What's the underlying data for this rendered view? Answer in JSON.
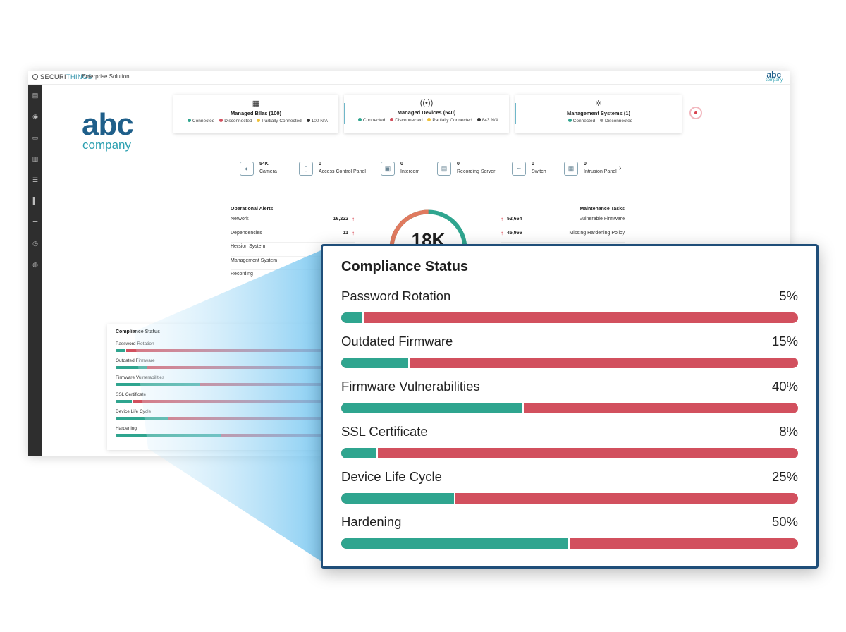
{
  "app": {
    "brand": "SECURITHINGS",
    "brand_prefix": "SECURI",
    "brand_suffix": "THINGS",
    "subtitle": "Enterprise Solution",
    "corner_logo_word": "abc",
    "corner_logo_sub": "company"
  },
  "logo": {
    "word": "abc",
    "sub": "company"
  },
  "sidebar": {
    "icons": [
      "dashboard-icon",
      "location-pin-icon",
      "monitor-icon",
      "building-icon",
      "list-icon",
      "bar-chart-icon",
      "sliders-icon",
      "clock-icon",
      "globe-icon"
    ]
  },
  "summary_cards": [
    {
      "icon": "building-icon",
      "title": "Managed Bllas (100)",
      "legend": [
        {
          "label": "Connected",
          "color": "#2fa58f"
        },
        {
          "label": "Disconnected",
          "color": "#d2505e"
        },
        {
          "label": "Partially Connected",
          "color": "#f0c23b"
        },
        {
          "label": "100 N/A",
          "color": "#333333"
        }
      ]
    },
    {
      "icon": "broadcast-icon",
      "title": "Managed Devices (540)",
      "legend": [
        {
          "label": "Connected",
          "color": "#2fa58f"
        },
        {
          "label": "Disconnected",
          "color": "#d2505e"
        },
        {
          "label": "Partially Connected",
          "color": "#f0c23b"
        },
        {
          "label": "843 N/A",
          "color": "#333333"
        }
      ]
    },
    {
      "icon": "asterisk-icon",
      "title": "Management Systems (1)",
      "legend": [
        {
          "label": "Connected",
          "color": "#2fa58f"
        },
        {
          "label": "Disconnected",
          "color": "#999999"
        }
      ]
    }
  ],
  "devices": [
    {
      "icon": "camera-icon",
      "count": "54K",
      "label": "Camera"
    },
    {
      "icon": "access-panel-icon",
      "count": "0",
      "label": "Access Control Panel"
    },
    {
      "icon": "intercom-icon",
      "count": "0",
      "label": "Intercom"
    },
    {
      "icon": "recording-server-icon",
      "count": "0",
      "label": "Recording Server"
    },
    {
      "icon": "switch-icon",
      "count": "0",
      "label": "Switch"
    },
    {
      "icon": "intrusion-panel-icon",
      "count": "0",
      "label": "Intrusion Panel"
    }
  ],
  "operational_alerts": {
    "title": "Operational Alerts",
    "rows": [
      {
        "label": "Network",
        "value": "16,222"
      },
      {
        "label": "Dependencies",
        "value": "11"
      },
      {
        "label": "Hersion System",
        "value": ""
      },
      {
        "label": "Management System",
        "value": ""
      },
      {
        "label": "Recording",
        "value": ""
      }
    ]
  },
  "maintenance_tasks": {
    "title": "Maintenance Tasks",
    "rows": [
      {
        "label": "Vulnerable Firmware",
        "value": "52,664"
      },
      {
        "label": "Missing Hardening Policy",
        "value": "45,966"
      }
    ]
  },
  "donut": {
    "value": "18K",
    "segments": [
      {
        "fraction": 0.45,
        "color": "#2fa58f"
      },
      {
        "fraction": 0.55,
        "color": "#e07a5f"
      }
    ]
  },
  "compliance": {
    "title": "Compliance Status",
    "items": [
      {
        "label": "Password Rotation",
        "percent": 5,
        "percent_label": "5%"
      },
      {
        "label": "Outdated Firmware",
        "percent": 15,
        "percent_label": "15%"
      },
      {
        "label": "Firmware Vulnerabilities",
        "percent": 40,
        "percent_label": "40%"
      },
      {
        "label": "SSL Certificate",
        "percent": 8,
        "percent_label": "8%"
      },
      {
        "label": "Device Life Cycle",
        "percent": 25,
        "percent_label": "25%"
      },
      {
        "label": "Hardening",
        "percent": 50,
        "percent_label": "50%"
      }
    ],
    "mini_title": "Compliance Status",
    "mini_labels": [
      "Password Rotation",
      "Outdated Firmware",
      "Firmware Vulnerabilities",
      "SSL Certificate",
      "Device Life Cycle",
      "Hardening"
    ]
  },
  "colors": {
    "good": "#2fa58f",
    "bad": "#d2505e",
    "accent": "#1f4e79"
  }
}
